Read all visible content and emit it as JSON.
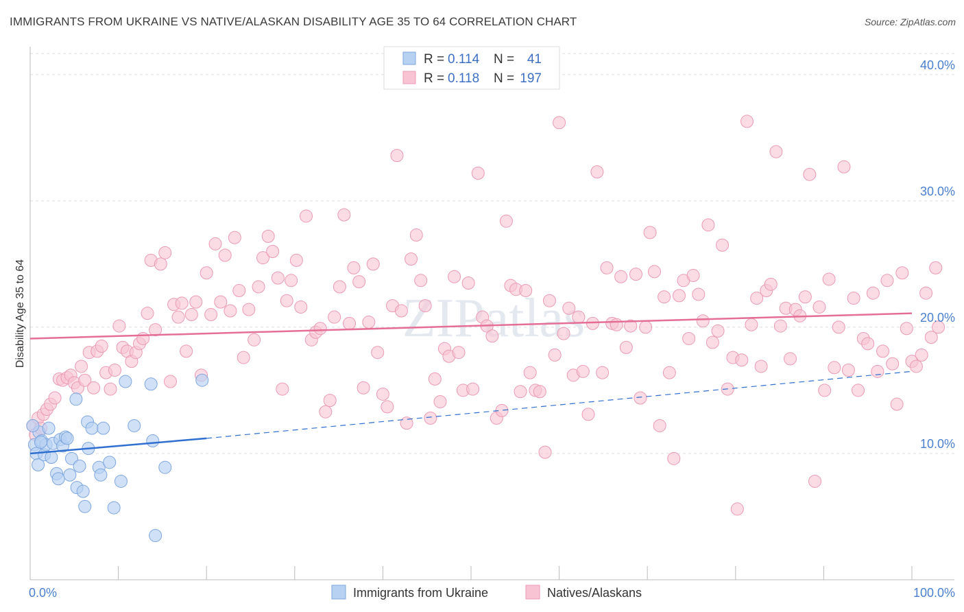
{
  "title": "IMMIGRANTS FROM UKRAINE VS NATIVE/ALASKAN DISABILITY AGE 35 TO 64 CORRELATION CHART",
  "source": "Source: ZipAtlas.com",
  "watermark": "ZIPatlas",
  "colors": {
    "blue_fill": "#b7d1f3",
    "blue_stroke": "#7ea6df",
    "blue_line": "#2f6fd0",
    "pink_fill": "#f8c4d4",
    "pink_stroke": "#eb9ab4",
    "pink_line": "#e46e96",
    "tick_text": "#4a7fd0",
    "grid": "#dddddd"
  },
  "legend": {
    "rows": [
      {
        "r_label": "R = ",
        "r_value": "0.114",
        "n_label": "N = ",
        "n_value": "41"
      },
      {
        "r_label": "R = ",
        "r_value": "0.118",
        "n_label": "N = ",
        "n_value": "197"
      }
    ]
  },
  "chart_data": {
    "type": "scatter",
    "title": "IMMIGRANTS FROM UKRAINE VS NATIVE/ALASKAN DISABILITY AGE 35 TO 64 CORRELATION CHART",
    "xlabel": "",
    "ylabel": "Disability Age 35 to 64",
    "xlim": [
      0,
      100
    ],
    "ylim": [
      0,
      42
    ],
    "x_tick_labels": [
      "0.0%",
      "100.0%"
    ],
    "y_ticks": [
      10,
      20,
      30,
      40
    ],
    "y_tick_labels": [
      "10.0%",
      "20.0%",
      "30.0%",
      "40.0%"
    ],
    "grid": true,
    "legend_position": "bottom",
    "series": [
      {
        "name": "Immigrants from Ukraine",
        "color": "#b7d1f3",
        "r": 0.114,
        "n": 41,
        "trend": {
          "x": [
            0,
            20
          ],
          "y": [
            10.0,
            11.2
          ],
          "dashed_extension": {
            "x": [
              20,
              100
            ],
            "y": [
              11.2,
              16.5
            ]
          }
        },
        "points": [
          [
            0.5,
            10.7
          ],
          [
            0.7,
            10.0
          ],
          [
            0.9,
            9.1
          ],
          [
            1.0,
            11.7
          ],
          [
            1.3,
            11.0
          ],
          [
            1.6,
            9.9
          ],
          [
            1.8,
            10.7
          ],
          [
            2.1,
            12.0
          ],
          [
            2.4,
            9.7
          ],
          [
            2.6,
            10.8
          ],
          [
            3.0,
            8.4
          ],
          [
            3.2,
            8.0
          ],
          [
            3.4,
            11.1
          ],
          [
            3.7,
            10.6
          ],
          [
            4.0,
            11.3
          ],
          [
            4.2,
            11.2
          ],
          [
            4.5,
            8.3
          ],
          [
            4.7,
            9.6
          ],
          [
            5.2,
            14.3
          ],
          [
            5.3,
            7.3
          ],
          [
            5.6,
            9.0
          ],
          [
            6.0,
            7.0
          ],
          [
            6.2,
            5.8
          ],
          [
            6.5,
            12.5
          ],
          [
            6.6,
            10.4
          ],
          [
            7.0,
            12.0
          ],
          [
            7.8,
            8.9
          ],
          [
            8.0,
            8.3
          ],
          [
            8.3,
            12.0
          ],
          [
            9.0,
            9.3
          ],
          [
            9.5,
            5.7
          ],
          [
            10.3,
            7.8
          ],
          [
            10.8,
            15.7
          ],
          [
            11.8,
            12.2
          ],
          [
            13.7,
            15.5
          ],
          [
            13.9,
            11.0
          ],
          [
            14.2,
            3.5
          ],
          [
            15.3,
            8.9
          ],
          [
            0.3,
            12.2
          ],
          [
            1.2,
            10.9
          ],
          [
            19.5,
            15.8
          ]
        ]
      },
      {
        "name": "Natives/Alaskans",
        "color": "#f8c4d4",
        "r": 0.118,
        "n": 197,
        "trend": {
          "x": [
            0,
            100
          ],
          "y": [
            19.1,
            21.1
          ]
        },
        "points": [
          [
            0.3,
            12.2
          ],
          [
            0.6,
            11.5
          ],
          [
            0.9,
            12.8
          ],
          [
            1.2,
            12.0
          ],
          [
            1.5,
            13.1
          ],
          [
            1.9,
            13.5
          ],
          [
            2.3,
            13.9
          ],
          [
            2.8,
            14.4
          ],
          [
            3.3,
            15.9
          ],
          [
            3.7,
            15.8
          ],
          [
            4.2,
            16.0
          ],
          [
            4.6,
            16.2
          ],
          [
            5.0,
            15.6
          ],
          [
            5.4,
            15.2
          ],
          [
            5.8,
            16.9
          ],
          [
            6.2,
            15.8
          ],
          [
            6.7,
            18.0
          ],
          [
            7.2,
            15.2
          ],
          [
            7.6,
            18.1
          ],
          [
            8.1,
            18.5
          ],
          [
            8.6,
            16.4
          ],
          [
            9.1,
            15.1
          ],
          [
            9.6,
            16.6
          ],
          [
            10.1,
            20.1
          ],
          [
            10.5,
            18.4
          ],
          [
            11.0,
            18.1
          ],
          [
            11.5,
            17.3
          ],
          [
            12.0,
            18.0
          ],
          [
            12.4,
            18.7
          ],
          [
            12.8,
            19.1
          ],
          [
            13.3,
            21.1
          ],
          [
            13.7,
            25.3
          ],
          [
            14.2,
            19.8
          ],
          [
            14.8,
            25.0
          ],
          [
            15.3,
            25.9
          ],
          [
            15.9,
            15.7
          ],
          [
            16.3,
            21.8
          ],
          [
            16.8,
            20.8
          ],
          [
            17.2,
            21.9
          ],
          [
            17.7,
            18.1
          ],
          [
            18.3,
            21.0
          ],
          [
            18.8,
            22.0
          ],
          [
            19.4,
            16.2
          ],
          [
            20.0,
            24.3
          ],
          [
            20.5,
            21.0
          ],
          [
            21.0,
            26.6
          ],
          [
            21.6,
            22.0
          ],
          [
            22.1,
            25.7
          ],
          [
            22.7,
            21.3
          ],
          [
            23.2,
            27.1
          ],
          [
            23.7,
            22.9
          ],
          [
            24.2,
            17.6
          ],
          [
            24.8,
            21.4
          ],
          [
            25.4,
            19.0
          ],
          [
            25.9,
            23.2
          ],
          [
            26.4,
            25.5
          ],
          [
            27.0,
            27.2
          ],
          [
            27.5,
            26.0
          ],
          [
            28.1,
            23.9
          ],
          [
            28.6,
            15.1
          ],
          [
            29.1,
            22.1
          ],
          [
            29.6,
            23.7
          ],
          [
            30.2,
            25.3
          ],
          [
            30.7,
            21.6
          ],
          [
            31.3,
            28.8
          ],
          [
            31.9,
            19.0
          ],
          [
            32.4,
            19.6
          ],
          [
            32.9,
            19.9
          ],
          [
            33.5,
            13.3
          ],
          [
            34.0,
            14.2
          ],
          [
            34.5,
            20.8
          ],
          [
            35.1,
            23.2
          ],
          [
            35.6,
            28.9
          ],
          [
            36.2,
            20.3
          ],
          [
            36.7,
            24.7
          ],
          [
            37.3,
            23.6
          ],
          [
            37.8,
            15.2
          ],
          [
            38.4,
            20.4
          ],
          [
            38.9,
            25.0
          ],
          [
            39.4,
            18.0
          ],
          [
            40.0,
            14.7
          ],
          [
            40.5,
            13.7
          ],
          [
            41.1,
            21.7
          ],
          [
            41.6,
            33.6
          ],
          [
            42.1,
            21.3
          ],
          [
            42.7,
            12.4
          ],
          [
            43.2,
            25.4
          ],
          [
            43.8,
            27.3
          ],
          [
            44.3,
            23.7
          ],
          [
            44.8,
            21.7
          ],
          [
            45.4,
            12.8
          ],
          [
            45.9,
            15.9
          ],
          [
            46.5,
            14.1
          ],
          [
            47.0,
            18.3
          ],
          [
            47.5,
            17.7
          ],
          [
            48.1,
            24.0
          ],
          [
            48.6,
            18.0
          ],
          [
            49.1,
            15.0
          ],
          [
            49.7,
            23.5
          ],
          [
            50.2,
            15.1
          ],
          [
            50.8,
            32.2
          ],
          [
            51.3,
            20.8
          ],
          [
            51.8,
            20.1
          ],
          [
            52.4,
            19.3
          ],
          [
            52.9,
            12.8
          ],
          [
            53.5,
            13.4
          ],
          [
            54.0,
            28.4
          ],
          [
            54.5,
            23.3
          ],
          [
            55.1,
            23.0
          ],
          [
            55.6,
            14.9
          ],
          [
            56.2,
            22.9
          ],
          [
            56.7,
            16.4
          ],
          [
            57.3,
            15.0
          ],
          [
            57.8,
            14.9
          ],
          [
            58.4,
            10.1
          ],
          [
            58.9,
            22.1
          ],
          [
            59.5,
            17.8
          ],
          [
            60.0,
            36.2
          ],
          [
            60.5,
            19.5
          ],
          [
            61.1,
            21.5
          ],
          [
            61.6,
            16.2
          ],
          [
            62.2,
            20.8
          ],
          [
            62.7,
            16.5
          ],
          [
            63.3,
            13.1
          ],
          [
            63.8,
            20.3
          ],
          [
            64.3,
            32.3
          ],
          [
            64.9,
            16.4
          ],
          [
            65.4,
            24.7
          ],
          [
            66.0,
            20.3
          ],
          [
            66.5,
            20.2
          ],
          [
            67.0,
            24.0
          ],
          [
            67.6,
            18.4
          ],
          [
            68.1,
            20.1
          ],
          [
            68.7,
            24.2
          ],
          [
            69.2,
            14.4
          ],
          [
            69.8,
            20.0
          ],
          [
            70.3,
            27.5
          ],
          [
            70.8,
            24.4
          ],
          [
            71.4,
            12.2
          ],
          [
            71.9,
            22.4
          ],
          [
            72.5,
            16.4
          ],
          [
            73.0,
            9.6
          ],
          [
            73.6,
            22.5
          ],
          [
            74.1,
            23.7
          ],
          [
            74.7,
            19.1
          ],
          [
            75.2,
            24.1
          ],
          [
            75.8,
            22.6
          ],
          [
            76.3,
            20.5
          ],
          [
            76.9,
            28.1
          ],
          [
            77.4,
            18.8
          ],
          [
            78.0,
            19.7
          ],
          [
            78.5,
            26.5
          ],
          [
            79.1,
            15.1
          ],
          [
            79.7,
            17.6
          ],
          [
            80.2,
            5.6
          ],
          [
            80.7,
            17.4
          ],
          [
            81.3,
            36.3
          ],
          [
            81.8,
            20.2
          ],
          [
            82.4,
            22.3
          ],
          [
            82.9,
            16.9
          ],
          [
            83.5,
            22.9
          ],
          [
            84.0,
            23.4
          ],
          [
            84.6,
            33.9
          ],
          [
            85.1,
            20.1
          ],
          [
            85.7,
            21.5
          ],
          [
            86.2,
            17.5
          ],
          [
            86.8,
            21.4
          ],
          [
            87.3,
            20.9
          ],
          [
            87.9,
            22.4
          ],
          [
            88.4,
            32.1
          ],
          [
            89.0,
            7.8
          ],
          [
            89.5,
            21.6
          ],
          [
            90.1,
            15.0
          ],
          [
            90.6,
            23.8
          ],
          [
            91.2,
            16.8
          ],
          [
            91.7,
            20.0
          ],
          [
            92.3,
            32.7
          ],
          [
            92.8,
            16.6
          ],
          [
            93.4,
            22.3
          ],
          [
            93.9,
            15.0
          ],
          [
            94.5,
            19.1
          ],
          [
            95.0,
            18.7
          ],
          [
            95.6,
            22.7
          ],
          [
            96.1,
            16.5
          ],
          [
            96.7,
            18.1
          ],
          [
            97.2,
            23.7
          ],
          [
            97.8,
            17.1
          ],
          [
            98.3,
            13.9
          ],
          [
            98.9,
            24.3
          ],
          [
            99.4,
            19.9
          ],
          [
            100.0,
            17.3
          ],
          [
            100.5,
            16.9
          ],
          [
            101.1,
            17.8
          ],
          [
            101.6,
            22.7
          ],
          [
            102.2,
            19.2
          ],
          [
            102.7,
            24.7
          ],
          [
            103.0,
            20.0
          ]
        ]
      }
    ]
  }
}
